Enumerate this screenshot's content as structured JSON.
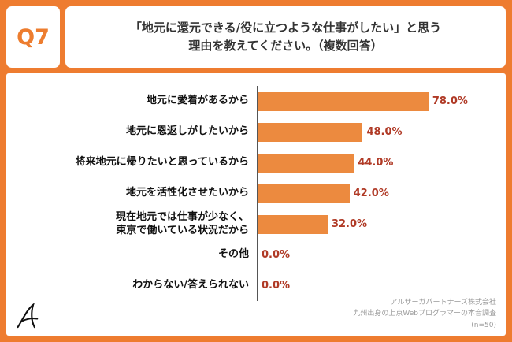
{
  "header": {
    "q_label": "Q7",
    "title": "「地元に還元できる/役に立つような仕事がしたい」と思う\n理由を教えてください。（複数回答）"
  },
  "chart_data": {
    "type": "bar",
    "orientation": "horizontal",
    "title": "「地元に還元できる/役に立つような仕事がしたい」と思う理由を教えてください。（複数回答）",
    "categories": [
      "地元に愛着があるから",
      "地元に恩返しがしたいから",
      "将来地元に帰りたいと思っているから",
      "地元を活性化させたいから",
      "現在地元では仕事が少なく、\n東京で働いている状況だから",
      "その他",
      "わからない/答えられない"
    ],
    "values": [
      78,
      48,
      44,
      42,
      32,
      0,
      0
    ],
    "value_labels": [
      "78.0%",
      "48.0%",
      "44.0%",
      "42.0%",
      "32.0%",
      "0.0%",
      "0.0%"
    ],
    "xlim": [
      0,
      100
    ],
    "grid": false,
    "legend": false,
    "bar_color": "#EC8A3F",
    "value_label_color": "#B03A26",
    "background_color": "#EE7C30"
  },
  "footer": {
    "lines": [
      "アルサーガパートナーズ株式会社",
      "九州出身の上京Webプログラマーの本音調査",
      "(n=50)"
    ]
  },
  "logo": {
    "glyph": "A"
  }
}
